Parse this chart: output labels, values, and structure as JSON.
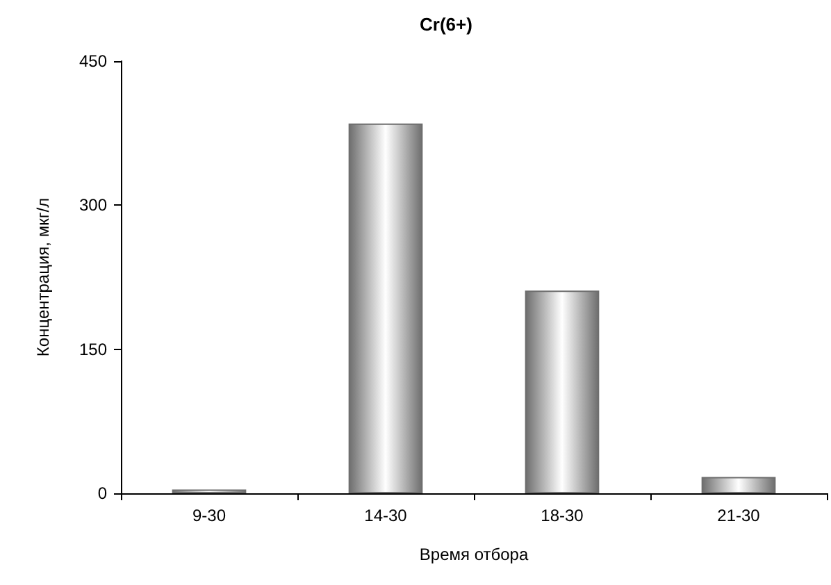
{
  "chart_data": {
    "type": "bar",
    "title": "Cr(6+)",
    "xlabel": "Время отбора",
    "ylabel": "Концентрация, мкг/л",
    "categories": [
      "9-30",
      "14-30",
      "18-30",
      "21-30"
    ],
    "values": [
      4,
      385,
      211,
      17
    ],
    "color": "#6e6e6e",
    "ylim": [
      0,
      450
    ],
    "yticks": [
      0,
      150,
      300,
      450
    ],
    "grid": false
  }
}
